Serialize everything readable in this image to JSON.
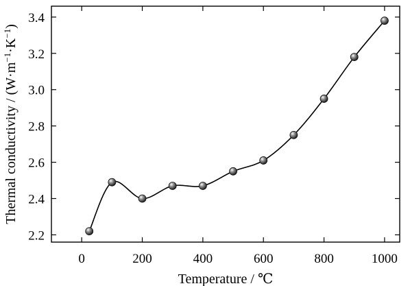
{
  "chart_data": {
    "type": "line",
    "title": "",
    "xlabel": "Temperature / ℃",
    "ylabel": "Thermal conductivity / (W·m⁻¹·K⁻¹)",
    "ylabel_parts": {
      "prefix": "Thermal conductivity / (W·m",
      "sup1": "−1",
      "mid": "·K",
      "sup2": "−1",
      "suffix": ")"
    },
    "xlim": [
      -100,
      1050
    ],
    "ylim": [
      2.16,
      3.46
    ],
    "xticks": [
      0,
      200,
      400,
      600,
      800,
      1000
    ],
    "yticks": [
      2.2,
      2.4,
      2.6,
      2.8,
      3.0,
      3.2,
      3.4
    ],
    "xtick_labels": [
      "0",
      "200",
      "400",
      "600",
      "800",
      "1000"
    ],
    "ytick_labels": [
      "2.2",
      "2.4",
      "2.6",
      "2.8",
      "3.0",
      "3.2",
      "3.4"
    ],
    "grid": false,
    "legend": "none",
    "marker_color": "#555555",
    "line_color": "#000000",
    "series": [
      {
        "x": [
          25,
          100,
          200,
          300,
          400,
          500,
          600,
          700,
          800,
          900,
          1000
        ],
        "y": [
          2.22,
          2.49,
          2.4,
          2.47,
          2.47,
          2.55,
          2.61,
          2.75,
          2.95,
          3.18,
          3.38
        ]
      }
    ]
  }
}
